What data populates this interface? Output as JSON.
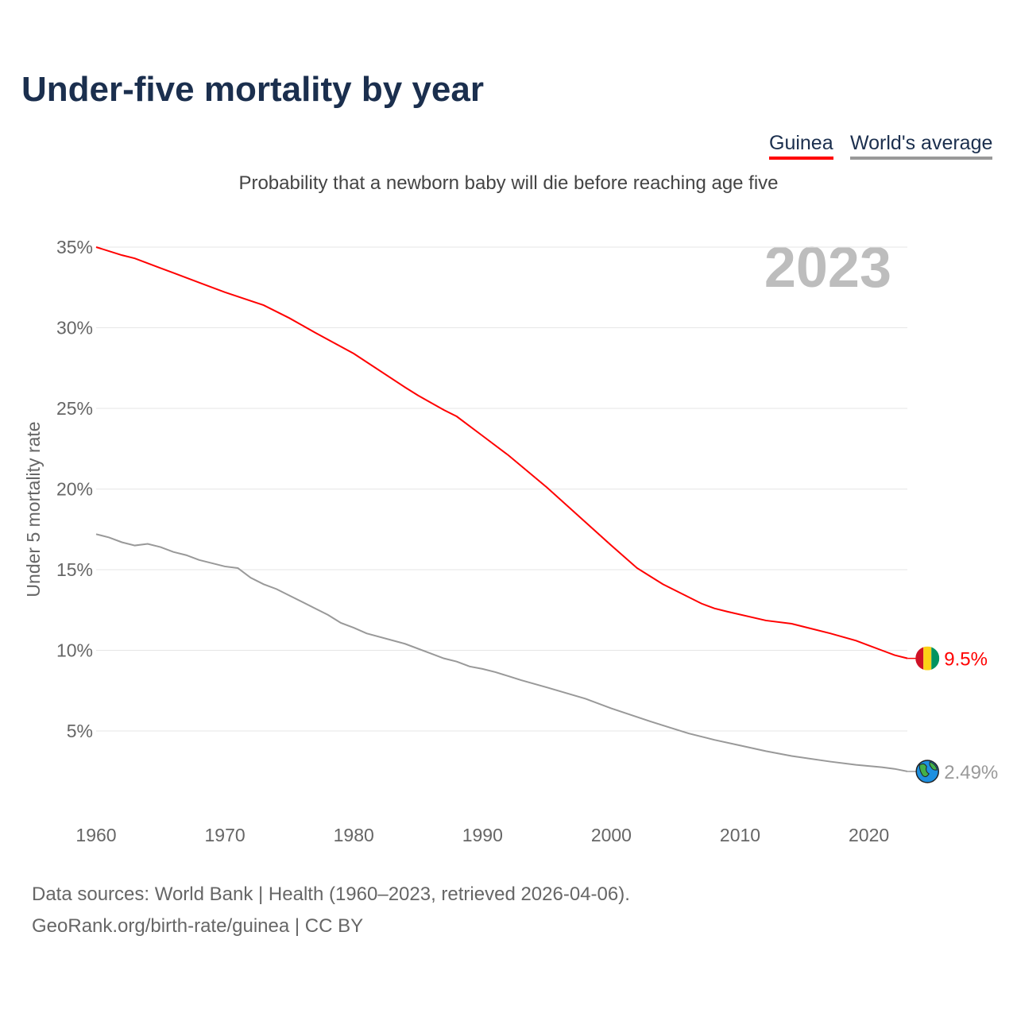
{
  "title": "Under-five mortality by year",
  "legend": [
    {
      "label": "Guinea",
      "color": "#ff0000"
    },
    {
      "label": "World's average",
      "color": "#999999"
    }
  ],
  "subtitle": "Probability that a newborn baby will die before reaching age five",
  "year_badge": "2023",
  "footer": {
    "line1": "Data sources: World Bank | Health (1960–2023, retrieved 2026-04-06).",
    "line2": "GeoRank.org/birth-rate/guinea | CC BY"
  },
  "chart_data": {
    "type": "line",
    "title": "Under-five mortality by year",
    "ylabel": "Under 5 mortality rate",
    "xlabel": "",
    "xlim": [
      1960,
      2023
    ],
    "ylim": [
      0,
      36
    ],
    "xticks": [
      1960,
      1970,
      1980,
      1990,
      2000,
      2010,
      2020
    ],
    "yticks": [
      5,
      10,
      15,
      20,
      25,
      30,
      35
    ],
    "ytick_labels": [
      "5%",
      "10%",
      "15%",
      "20%",
      "25%",
      "30%",
      "35%"
    ],
    "grid": true,
    "legend_position": "top-right",
    "series": [
      {
        "name": "Guinea",
        "color": "#ff0000",
        "end_label": "9.5%",
        "marker_icon": "guinea-flag-icon",
        "x": [
          1960,
          1962,
          1963,
          1965,
          1966,
          1970,
          1973,
          1975,
          1977,
          1980,
          1984,
          1985,
          1987,
          1988,
          1990,
          1992,
          1995,
          2000,
          2001,
          2002,
          2003,
          2004,
          2007,
          2008,
          2009,
          2012,
          2014,
          2017,
          2019,
          2020,
          2021,
          2022,
          2023
        ],
        "y": [
          35.0,
          34.5,
          34.3,
          33.7,
          33.4,
          32.2,
          31.4,
          30.6,
          29.7,
          28.4,
          26.3,
          25.8,
          24.9,
          24.5,
          23.3,
          22.1,
          20.1,
          16.5,
          15.8,
          15.1,
          14.6,
          14.1,
          12.9,
          12.6,
          12.4,
          11.85,
          11.65,
          11.05,
          10.6,
          10.3,
          10.0,
          9.7,
          9.5
        ]
      },
      {
        "name": "World's average",
        "color": "#999999",
        "end_label": "2.49%",
        "marker_icon": "globe-icon",
        "x": [
          1960,
          1961,
          1962,
          1963,
          1964,
          1965,
          1966,
          1967,
          1968,
          1970,
          1971,
          1972,
          1973,
          1974,
          1975,
          1977,
          1978,
          1979,
          1980,
          1981,
          1984,
          1986,
          1987,
          1988,
          1989,
          1990,
          1991,
          1992,
          1993,
          1995,
          1998,
          2000,
          2003,
          2004,
          2006,
          2008,
          2010,
          2012,
          2014,
          2017,
          2019,
          2021,
          2022,
          2023
        ],
        "y": [
          17.2,
          17.0,
          16.7,
          16.5,
          16.6,
          16.4,
          16.1,
          15.9,
          15.6,
          15.2,
          15.1,
          14.5,
          14.1,
          13.8,
          13.4,
          12.6,
          12.2,
          11.7,
          11.4,
          11.05,
          10.4,
          9.8,
          9.5,
          9.3,
          9.0,
          8.85,
          8.65,
          8.4,
          8.15,
          7.7,
          7.0,
          6.4,
          5.6,
          5.35,
          4.85,
          4.45,
          4.1,
          3.75,
          3.45,
          3.1,
          2.9,
          2.75,
          2.65,
          2.49
        ]
      }
    ]
  }
}
